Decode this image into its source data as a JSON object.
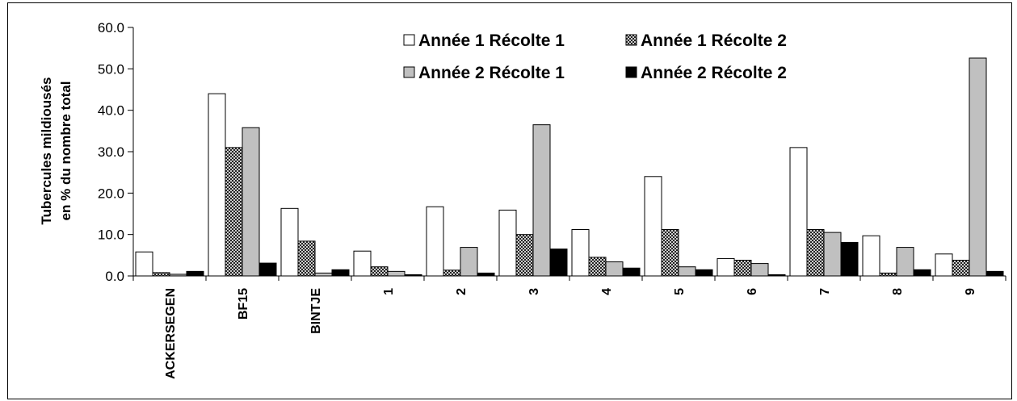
{
  "chart_data": {
    "type": "bar",
    "title": "",
    "ylabel_line1": "Tubercules mildiousés",
    "ylabel_line2": "en % du nombre total",
    "xlabel": "",
    "ylim": [
      0,
      60
    ],
    "yticks": [
      "0.0",
      "10.0",
      "20.0",
      "30.0",
      "40.0",
      "50.0",
      "60.0"
    ],
    "categories": [
      "ACKERSEGEN",
      "BF15",
      "BINTJE",
      "1",
      "2",
      "3",
      "4",
      "5",
      "6",
      "7",
      "8",
      "9"
    ],
    "series": [
      {
        "name": "Année 1 Récolte 1",
        "fill": "white",
        "values": [
          5.8,
          44.0,
          16.3,
          6.0,
          16.7,
          15.9,
          11.2,
          24.0,
          4.2,
          31.0,
          9.7,
          5.3
        ]
      },
      {
        "name": "Année 1 Récolte 2",
        "fill": "crosshatch",
        "values": [
          0.8,
          31.0,
          8.4,
          2.2,
          1.4,
          10.0,
          4.5,
          11.2,
          3.8,
          11.2,
          0.7,
          3.8
        ]
      },
      {
        "name": "Année 2 Récolte 1",
        "fill": "gray",
        "values": [
          0.4,
          35.8,
          0.7,
          1.1,
          6.9,
          36.5,
          3.4,
          2.2,
          3.0,
          10.5,
          6.9,
          52.6
        ]
      },
      {
        "name": "Année 2 Récolte 2",
        "fill": "black",
        "values": [
          1.1,
          3.1,
          1.5,
          0.3,
          0.7,
          6.5,
          1.9,
          1.5,
          0.3,
          8.1,
          1.5,
          1.1
        ]
      }
    ],
    "legend_position": "top-right",
    "grid": false
  },
  "colors": {
    "white": "#ffffff",
    "gray": "#c0c0c0",
    "black": "#000000",
    "outline": "#000000"
  }
}
